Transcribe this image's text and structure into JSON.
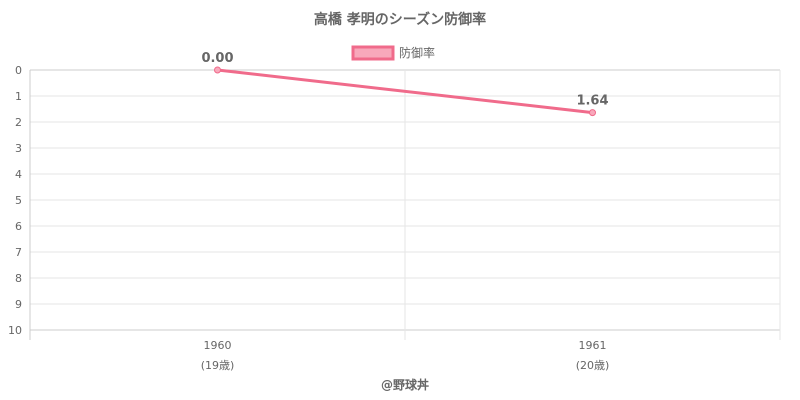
{
  "chart_data": {
    "type": "line",
    "title": "高橋 孝明のシーズン防御率",
    "categories": [
      "1960",
      "1961"
    ],
    "category_sublabels": [
      "(19歳)",
      "(20歳)"
    ],
    "series": [
      {
        "name": "防御率",
        "values": [
          0.0,
          1.64
        ],
        "data_labels": [
          "0.00",
          "1.64"
        ]
      }
    ],
    "y_ticks": [
      "0",
      "1",
      "2",
      "3",
      "4",
      "5",
      "6",
      "7",
      "8",
      "9",
      "10"
    ],
    "ylim": [
      0,
      10
    ],
    "y_reversed": true,
    "grid": true,
    "legend_position": "top-center",
    "colors": {
      "line": "#f06b8b",
      "fill": "#f8a8bb",
      "grid": "#e6e6e6",
      "axis": "#cccccc",
      "text": "#666666"
    }
  },
  "footer": {
    "credit": "@野球丼"
  }
}
